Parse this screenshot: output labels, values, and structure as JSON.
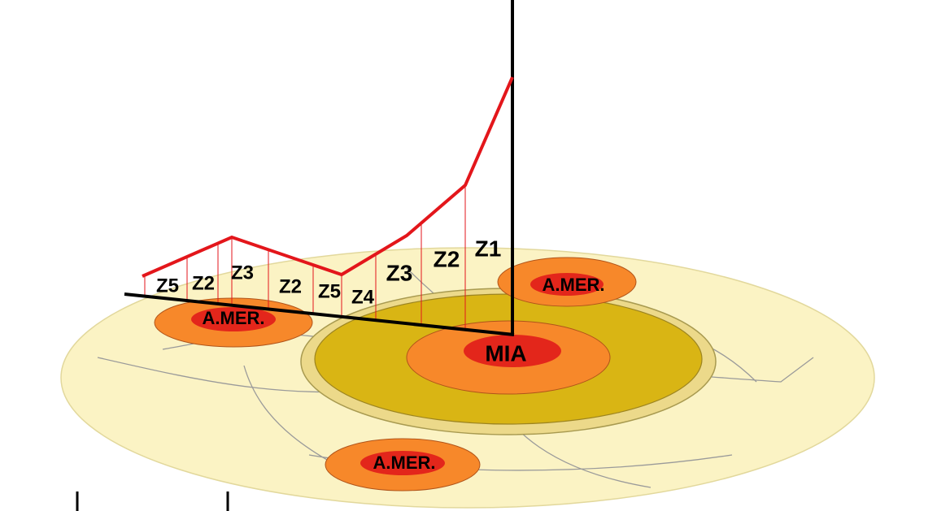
{
  "zones": [
    {
      "label": "Z5"
    },
    {
      "label": "Z2"
    },
    {
      "label": "Z3"
    },
    {
      "label": "Z2"
    },
    {
      "label": "Z5"
    },
    {
      "label": "Z4"
    },
    {
      "label": "Z3"
    },
    {
      "label": "Z2"
    },
    {
      "label": "Z1"
    }
  ],
  "centers": [
    {
      "label": "A.MER."
    },
    {
      "label": "A.MER."
    },
    {
      "label": "A.MER."
    },
    {
      "label": "MIA"
    }
  ]
}
